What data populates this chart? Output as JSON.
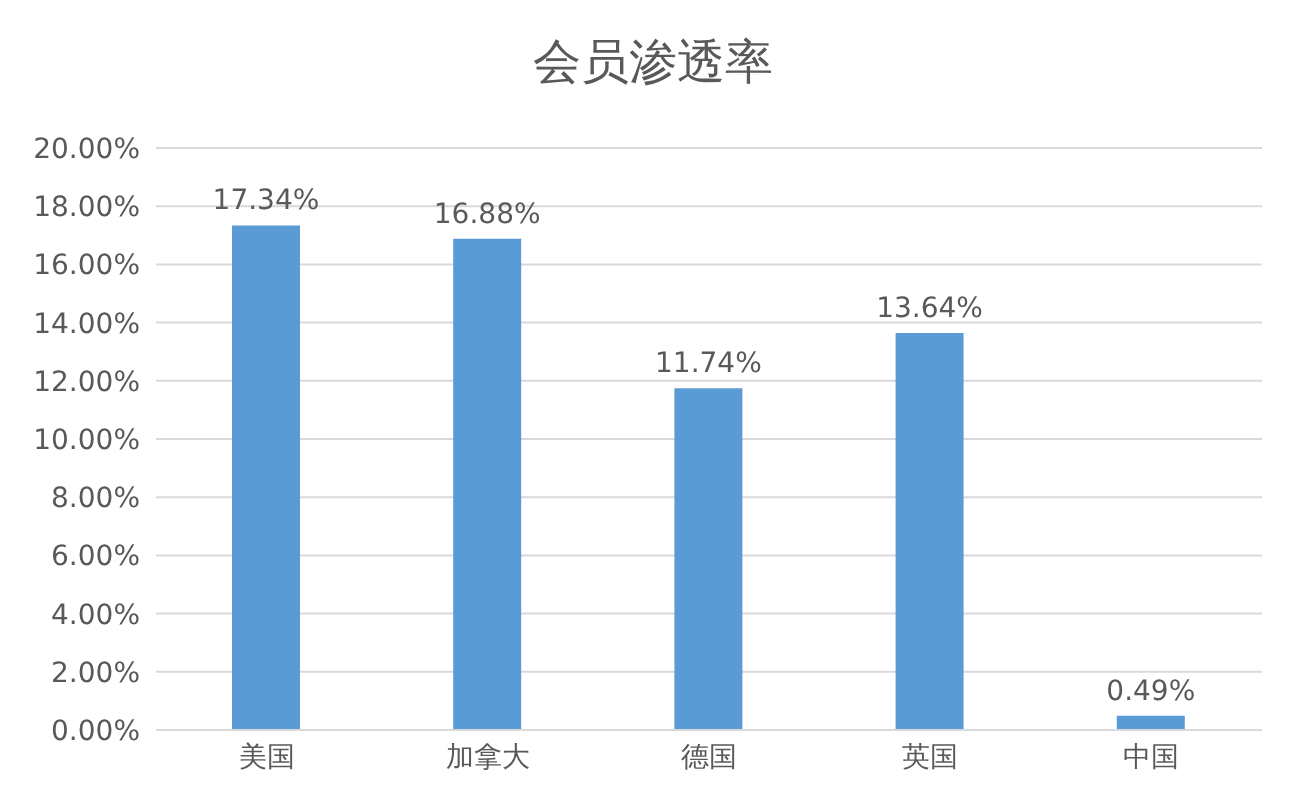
{
  "chart_data": {
    "type": "bar",
    "title": "会员渗透率",
    "categories": [
      "美国",
      "加拿大",
      "德国",
      "英国",
      "中国"
    ],
    "values": [
      17.34,
      16.88,
      11.74,
      13.64,
      0.49
    ],
    "value_labels": [
      "17.34%",
      "16.88%",
      "11.74%",
      "13.64%",
      "0.49%"
    ],
    "color": "#5b9bd5",
    "ylim": [
      0,
      20
    ],
    "yticks": [
      {
        "value": 0,
        "label": "0.00%"
      },
      {
        "value": 2,
        "label": "2.00%"
      },
      {
        "value": 4,
        "label": "4.00%"
      },
      {
        "value": 6,
        "label": "6.00%"
      },
      {
        "value": 8,
        "label": "8.00%"
      },
      {
        "value": 10,
        "label": "10.00%"
      },
      {
        "value": 12,
        "label": "12.00%"
      },
      {
        "value": 14,
        "label": "14.00%"
      },
      {
        "value": 16,
        "label": "16.00%"
      },
      {
        "value": 18,
        "label": "18.00%"
      },
      {
        "value": 20,
        "label": "20.00%"
      }
    ],
    "grid": "y",
    "legend": false
  }
}
